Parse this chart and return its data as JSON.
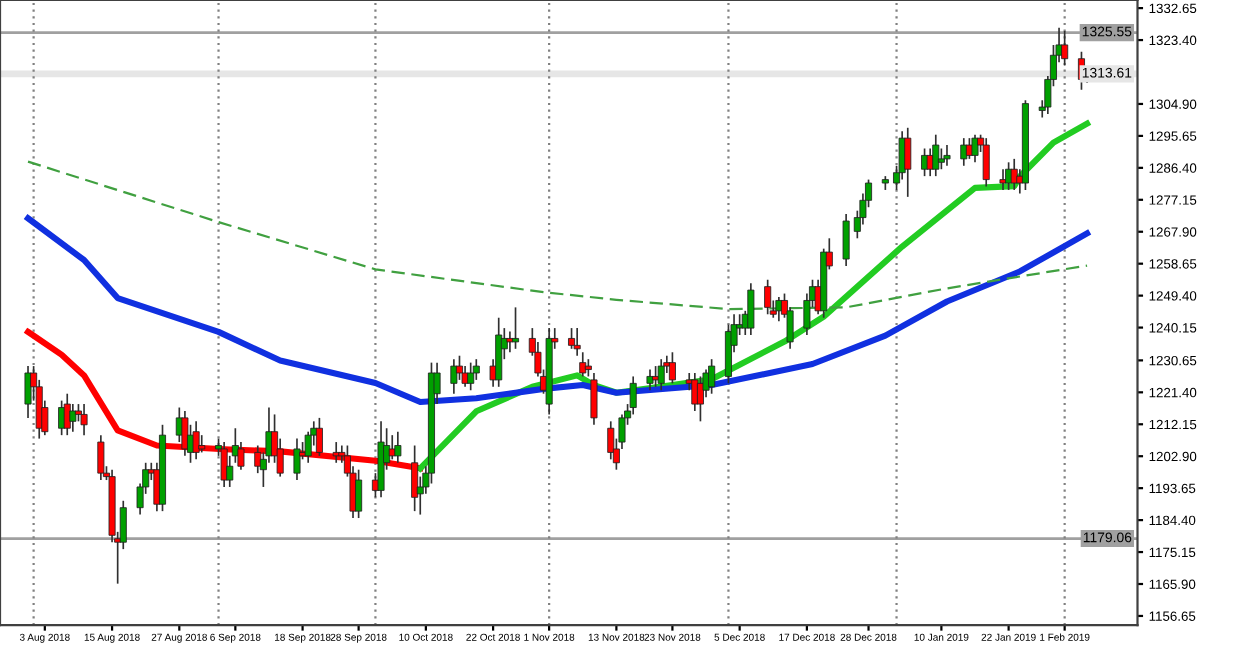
{
  "chart_data": {
    "type": "candlestick",
    "x": [
      "2018-07-31",
      "2018-08-01",
      "2018-08-02",
      "2018-08-03",
      "2018-08-06",
      "2018-08-07",
      "2018-08-08",
      "2018-08-09",
      "2018-08-10",
      "2018-08-13",
      "2018-08-14",
      "2018-08-15",
      "2018-08-16",
      "2018-08-17",
      "2018-08-20",
      "2018-08-21",
      "2018-08-22",
      "2018-08-23",
      "2018-08-24",
      "2018-08-27",
      "2018-08-28",
      "2018-08-29",
      "2018-08-30",
      "2018-08-31",
      "2018-09-03",
      "2018-09-04",
      "2018-09-05",
      "2018-09-06",
      "2018-09-07",
      "2018-09-10",
      "2018-09-11",
      "2018-09-12",
      "2018-09-13",
      "2018-09-14",
      "2018-09-17",
      "2018-09-18",
      "2018-09-19",
      "2018-09-20",
      "2018-09-21",
      "2018-09-24",
      "2018-09-25",
      "2018-09-26",
      "2018-09-27",
      "2018-09-28",
      "2018-10-01",
      "2018-10-02",
      "2018-10-03",
      "2018-10-04",
      "2018-10-05",
      "2018-10-08",
      "2018-10-09",
      "2018-10-10",
      "2018-10-11",
      "2018-10-12",
      "2018-10-15",
      "2018-10-16",
      "2018-10-17",
      "2018-10-18",
      "2018-10-19",
      "2018-10-22",
      "2018-10-23",
      "2018-10-24",
      "2018-10-25",
      "2018-10-26",
      "2018-10-29",
      "2018-10-30",
      "2018-10-31",
      "2018-11-01",
      "2018-11-02",
      "2018-11-05",
      "2018-11-06",
      "2018-11-07",
      "2018-11-08",
      "2018-11-09",
      "2018-11-12",
      "2018-11-13",
      "2018-11-14",
      "2018-11-15",
      "2018-11-16",
      "2018-11-19",
      "2018-11-20",
      "2018-11-21",
      "2018-11-22",
      "2018-11-23",
      "2018-11-26",
      "2018-11-27",
      "2018-11-28",
      "2018-11-29",
      "2018-11-30",
      "2018-12-03",
      "2018-12-04",
      "2018-12-05",
      "2018-12-06",
      "2018-12-07",
      "2018-12-10",
      "2018-12-11",
      "2018-12-12",
      "2018-12-13",
      "2018-12-14",
      "2018-12-17",
      "2018-12-18",
      "2018-12-19",
      "2018-12-20",
      "2018-12-21",
      "2018-12-24",
      "2018-12-26",
      "2018-12-27",
      "2018-12-28",
      "2018-12-31",
      "2019-01-02",
      "2019-01-03",
      "2019-01-04",
      "2019-01-07",
      "2019-01-08",
      "2019-01-09",
      "2019-01-10",
      "2019-01-11",
      "2019-01-14",
      "2019-01-15",
      "2019-01-16",
      "2019-01-17",
      "2019-01-18",
      "2019-01-21",
      "2019-01-22",
      "2019-01-23",
      "2019-01-24",
      "2019-01-25",
      "2019-01-28",
      "2019-01-29",
      "2019-01-30",
      "2019-01-31",
      "2019-02-01",
      "2019-02-04",
      "2019-02-05"
    ],
    "ohlc": [
      [
        1218,
        1229,
        1214,
        1227
      ],
      [
        1227,
        1229,
        1219,
        1223
      ],
      [
        1223,
        1225,
        1208,
        1211
      ],
      [
        1217,
        1219,
        1209,
        1210
      ],
      [
        1211,
        1219,
        1209,
        1217
      ],
      [
        1218,
        1221,
        1209,
        1211
      ],
      [
        1213,
        1218,
        1210,
        1216
      ],
      [
        1216,
        1218,
        1213,
        1215
      ],
      [
        1215,
        1218,
        1209,
        1212
      ],
      [
        1207,
        1209,
        1196,
        1198
      ],
      [
        1198,
        1200,
        1196,
        1197
      ],
      [
        1197,
        1199,
        1178,
        1180
      ],
      [
        1179,
        1181,
        1166,
        1178
      ],
      [
        1178,
        1190,
        1176,
        1188
      ],
      [
        1188,
        1195,
        1186,
        1194
      ],
      [
        1194,
        1201,
        1192,
        1199
      ],
      [
        1199,
        1201,
        1196,
        1198
      ],
      [
        1199,
        1201,
        1187,
        1189
      ],
      [
        1189,
        1212,
        1187,
        1209
      ],
      [
        1209,
        1217,
        1207,
        1214
      ],
      [
        1214,
        1216,
        1203,
        1205
      ],
      [
        1204,
        1212,
        1201,
        1209
      ],
      [
        1210,
        1213,
        1202,
        1204
      ],
      [
        1206,
        1209,
        1204,
        1205
      ],
      [
        1205,
        1208,
        1203,
        1206
      ],
      [
        1205,
        1207,
        1194,
        1196
      ],
      [
        1196,
        1203,
        1194,
        1200
      ],
      [
        1203,
        1211,
        1201,
        1206
      ],
      [
        1205,
        1207,
        1199,
        1200
      ],
      [
        1204,
        1206,
        1198,
        1200
      ],
      [
        1199,
        1204,
        1194,
        1202
      ],
      [
        1203,
        1217,
        1201,
        1210
      ],
      [
        1210,
        1215,
        1201,
        1203
      ],
      [
        1205,
        1208,
        1197,
        1198
      ],
      [
        1198,
        1208,
        1196,
        1205
      ],
      [
        1204,
        1207,
        1202,
        1203
      ],
      [
        1203,
        1210,
        1201,
        1209
      ],
      [
        1209,
        1213,
        1206,
        1211
      ],
      [
        1211,
        1214,
        1203,
        1204
      ],
      [
        1204,
        1207,
        1201,
        1203
      ],
      [
        1204,
        1206,
        1201,
        1203
      ],
      [
        1203,
        1206,
        1197,
        1198
      ],
      [
        1198,
        1200,
        1185,
        1187
      ],
      [
        1187,
        1199,
        1185,
        1196
      ],
      [
        1196,
        1198,
        1191,
        1193
      ],
      [
        1193,
        1213,
        1191,
        1207
      ],
      [
        1201,
        1211,
        1199,
        1206
      ],
      [
        1205,
        1209,
        1202,
        1203
      ],
      [
        1203,
        1210,
        1201,
        1206
      ],
      [
        1201,
        1206,
        1187,
        1191
      ],
      [
        1192,
        1197,
        1186,
        1194
      ],
      [
        1194,
        1200,
        1192,
        1198
      ],
      [
        1198,
        1230,
        1195,
        1227
      ],
      [
        1221,
        1230,
        1218,
        1227
      ],
      [
        1224,
        1231,
        1221,
        1229
      ],
      [
        1229,
        1232,
        1225,
        1227
      ],
      [
        1227,
        1229,
        1223,
        1224
      ],
      [
        1224,
        1230,
        1222,
        1227
      ],
      [
        1227,
        1231,
        1225,
        1229
      ],
      [
        1229,
        1231,
        1223,
        1225
      ],
      [
        1225,
        1243,
        1223,
        1238
      ],
      [
        1234,
        1240,
        1231,
        1237
      ],
      [
        1237,
        1239,
        1233,
        1236
      ],
      [
        1236,
        1246,
        1234,
        1237
      ],
      [
        1237,
        1240,
        1232,
        1233
      ],
      [
        1233,
        1236,
        1226,
        1227
      ],
      [
        1226,
        1228,
        1221,
        1222
      ],
      [
        1218,
        1240,
        1215,
        1237
      ],
      [
        1237,
        1240,
        1234,
        1236
      ],
      [
        1237,
        1240,
        1234,
        1235
      ],
      [
        1235,
        1240,
        1232,
        1234
      ],
      [
        1230,
        1233,
        1226,
        1227
      ],
      [
        1229,
        1231,
        1226,
        1228
      ],
      [
        1225,
        1227,
        1212,
        1214
      ],
      [
        1211,
        1213,
        1202,
        1204
      ],
      [
        1205,
        1208,
        1199,
        1201
      ],
      [
        1207,
        1215,
        1205,
        1214
      ],
      [
        1214,
        1218,
        1212,
        1216
      ],
      [
        1217,
        1226,
        1215,
        1224
      ],
      [
        1224,
        1228,
        1222,
        1226
      ],
      [
        1226,
        1229,
        1223,
        1225
      ],
      [
        1224,
        1231,
        1222,
        1229
      ],
      [
        1230,
        1232,
        1227,
        1229
      ],
      [
        1230,
        1233,
        1224,
        1225
      ],
      [
        1225,
        1227,
        1222,
        1224
      ],
      [
        1225,
        1227,
        1216,
        1218
      ],
      [
        1224,
        1226,
        1213,
        1218
      ],
      [
        1222,
        1228,
        1220,
        1227
      ],
      [
        1223,
        1231,
        1221,
        1229
      ],
      [
        1226,
        1241,
        1224,
        1239
      ],
      [
        1235,
        1244,
        1233,
        1241
      ],
      [
        1240,
        1244,
        1238,
        1241
      ],
      [
        1240,
        1245,
        1238,
        1244
      ],
      [
        1240,
        1253,
        1238,
        1251
      ],
      [
        1252,
        1254,
        1244,
        1246
      ],
      [
        1245,
        1248,
        1243,
        1244
      ],
      [
        1245,
        1249,
        1242,
        1248
      ],
      [
        1248,
        1250,
        1243,
        1244
      ],
      [
        1236,
        1246,
        1234,
        1245
      ],
      [
        1240,
        1250,
        1238,
        1248
      ],
      [
        1248,
        1254,
        1246,
        1252
      ],
      [
        1252,
        1254,
        1244,
        1245
      ],
      [
        1245,
        1263,
        1243,
        1262
      ],
      [
        1262,
        1266,
        1257,
        1258
      ],
      [
        1260,
        1273,
        1258,
        1271
      ],
      [
        1268,
        1274,
        1266,
        1272
      ],
      [
        1272,
        1279,
        1270,
        1277
      ],
      [
        1277,
        1283,
        1275,
        1282
      ],
      [
        1282,
        1284,
        1280,
        1283
      ],
      [
        1282,
        1287,
        1280,
        1285
      ],
      [
        1285,
        1297,
        1283,
        1295
      ],
      [
        1295,
        1298,
        1278,
        1286
      ],
      [
        1286,
        1292,
        1284,
        1290
      ],
      [
        1290,
        1292,
        1284,
        1286
      ],
      [
        1286,
        1296,
        1284,
        1293
      ],
      [
        1288,
        1292,
        1286,
        1289
      ],
      [
        1289,
        1293,
        1287,
        1290
      ],
      [
        1289,
        1295,
        1287,
        1293
      ],
      [
        1293,
        1295,
        1289,
        1290
      ],
      [
        1290,
        1296,
        1288,
        1295
      ],
      [
        1295,
        1296,
        1291,
        1293
      ],
      [
        1293,
        1295,
        1281,
        1283
      ],
      [
        1283,
        1286,
        1280,
        1282
      ],
      [
        1282,
        1288,
        1280,
        1286
      ],
      [
        1286,
        1289,
        1280,
        1282
      ],
      [
        1284,
        1286,
        1279,
        1282
      ],
      [
        1282,
        1306,
        1280,
        1305
      ],
      [
        1303,
        1306,
        1301,
        1304
      ],
      [
        1304,
        1313,
        1302,
        1312
      ],
      [
        1312,
        1322,
        1310,
        1319
      ],
      [
        1319,
        1327,
        1317,
        1322
      ],
      [
        1322,
        1326,
        1316,
        1318
      ],
      [
        1318,
        1320,
        1309,
        1312
      ],
      [
        1312,
        1315,
        1311,
        1313.61
      ]
    ],
    "series": [
      {
        "type": "line",
        "color": "#ff0000",
        "x": [
          "2018-07-31",
          "2018-08-06",
          "2018-08-10",
          "2018-08-16",
          "2018-08-23",
          "2018-09-04",
          "2018-09-14",
          "2018-10-01",
          "2018-10-09"
        ],
        "values": [
          1238.9,
          1232.3,
          1226.3,
          1210.4,
          1206.0,
          1204.9,
          1204.3,
          1201.6,
          1199.4
        ]
      },
      {
        "type": "line",
        "color": "#22cc22",
        "x": [
          "2018-10-09",
          "2018-10-19",
          "2018-10-29",
          "2018-11-06",
          "2018-11-09",
          "2018-11-13",
          "2018-11-23",
          "2018-11-30",
          "2018-12-13",
          "2018-12-20",
          "2019-01-03",
          "2019-01-16",
          "2019-01-23",
          "2019-01-24",
          "2019-01-30",
          "2019-02-05"
        ],
        "values": [
          1199.4,
          1215.9,
          1223.0,
          1226.3,
          1223.5,
          1221.3,
          1223.5,
          1225.2,
          1236.1,
          1243.3,
          1263.6,
          1280.6,
          1281.1,
          1283.9,
          1293.7,
          1299.2
        ]
      },
      {
        "type": "line",
        "color": "#1030e0",
        "x": [
          "2018-07-31",
          "2018-08-10",
          "2018-08-16",
          "2018-09-03",
          "2018-09-14",
          "2018-10-01",
          "2018-10-09",
          "2018-10-19",
          "2018-10-31",
          "2018-11-07",
          "2018-11-13",
          "2018-11-30",
          "2018-12-18",
          "2018-12-31",
          "2019-01-11",
          "2019-01-24",
          "2019-02-05"
        ],
        "values": [
          1271.8,
          1259.7,
          1248.7,
          1238.9,
          1230.6,
          1224.1,
          1218.6,
          1219.7,
          1222.4,
          1223.5,
          1221.3,
          1223.5,
          1229.6,
          1237.8,
          1247.7,
          1256.4,
          1267.4
        ]
      },
      {
        "type": "line",
        "color": "#40a040",
        "line_style": "dashed",
        "x": [
          "2018-07-31",
          "2018-09-03",
          "2018-10-01",
          "2018-10-31",
          "2018-11-13",
          "2018-12-03",
          "2018-12-24",
          "2019-01-11",
          "2019-02-05"
        ],
        "values": [
          1288.2,
          1270.7,
          1257.0,
          1250.4,
          1248.2,
          1245.5,
          1246.0,
          1251.5,
          1258.1
        ]
      }
    ],
    "xlim": [
      "2018-07-26",
      "2019-02-14"
    ],
    "xticks": [
      {
        "value": "2018-08-03",
        "label": "3 Aug 2018"
      },
      {
        "value": "2018-08-15",
        "label": "15 Aug 2018"
      },
      {
        "value": "2018-08-27",
        "label": "27 Aug 2018"
      },
      {
        "value": "2018-09-06",
        "label": "6 Sep 2018"
      },
      {
        "value": "2018-09-18",
        "label": "18 Sep 2018"
      },
      {
        "value": "2018-09-28",
        "label": "28 Sep 2018"
      },
      {
        "value": "2018-10-10",
        "label": "10 Oct 2018"
      },
      {
        "value": "2018-10-22",
        "label": "22 Oct 2018"
      },
      {
        "value": "2018-11-01",
        "label": "1 Nov 2018"
      },
      {
        "value": "2018-11-13",
        "label": "13 Nov 2018"
      },
      {
        "value": "2018-11-23",
        "label": "23 Nov 2018"
      },
      {
        "value": "2018-12-05",
        "label": "5 Dec 2018"
      },
      {
        "value": "2018-12-17",
        "label": "17 Dec 2018"
      },
      {
        "value": "2018-12-28",
        "label": "28 Dec 2018"
      },
      {
        "value": "2019-01-10",
        "label": "10 Jan 2019"
      },
      {
        "value": "2019-01-22",
        "label": "22 Jan 2019"
      },
      {
        "value": "2019-02-01",
        "label": "1 Feb 2019"
      }
    ],
    "ylim": [
      1154,
      1335
    ],
    "yticks": [
      {
        "value": 1332.65,
        "label": "1332.65"
      },
      {
        "value": 1323.4,
        "label": "1323.40"
      },
      {
        "value": 1304.9,
        "label": "1304.90"
      },
      {
        "value": 1295.65,
        "label": "1295.65"
      },
      {
        "value": 1286.4,
        "label": "1286.40"
      },
      {
        "value": 1277.15,
        "label": "1277.15"
      },
      {
        "value": 1267.9,
        "label": "1267.90"
      },
      {
        "value": 1258.65,
        "label": "1258.65"
      },
      {
        "value": 1249.4,
        "label": "1249.40"
      },
      {
        "value": 1240.15,
        "label": "1240.15"
      },
      {
        "value": 1230.65,
        "label": "1230.65"
      },
      {
        "value": 1221.4,
        "label": "1221.40"
      },
      {
        "value": 1212.15,
        "label": "1212.15"
      },
      {
        "value": 1202.9,
        "label": "1202.90"
      },
      {
        "value": 1193.65,
        "label": "1193.65"
      },
      {
        "value": 1184.4,
        "label": "1184.40"
      },
      {
        "value": 1175.15,
        "label": "1175.15"
      },
      {
        "value": 1165.9,
        "label": "1165.90"
      },
      {
        "value": 1156.65,
        "label": "1156.65"
      }
    ],
    "ref_lines": [
      {
        "axis": "y",
        "value": 1325.55,
        "label": "1325.55",
        "color": "#a0a0a0"
      },
      {
        "axis": "y",
        "value": 1313.61,
        "label": "1313.61",
        "color": "#e6e6e6"
      },
      {
        "axis": "y",
        "value": 1179.06,
        "label": "1179.06",
        "color": "#a0a0a0"
      },
      {
        "axis": "x",
        "value": "2018-08-01",
        "color": "#808080",
        "line_style": "dotted"
      },
      {
        "axis": "x",
        "value": "2018-09-03",
        "color": "#808080",
        "line_style": "dotted"
      },
      {
        "axis": "x",
        "value": "2018-10-01",
        "color": "#808080",
        "line_style": "dotted"
      },
      {
        "axis": "x",
        "value": "2018-11-01",
        "color": "#808080",
        "line_style": "dotted"
      },
      {
        "axis": "x",
        "value": "2018-12-03",
        "color": "#808080",
        "line_style": "dotted"
      },
      {
        "axis": "x",
        "value": "2019-01-02",
        "color": "#808080",
        "line_style": "dotted"
      },
      {
        "axis": "x",
        "value": "2019-02-01",
        "color": "#808080",
        "line_style": "dotted"
      }
    ],
    "grid": false
  }
}
